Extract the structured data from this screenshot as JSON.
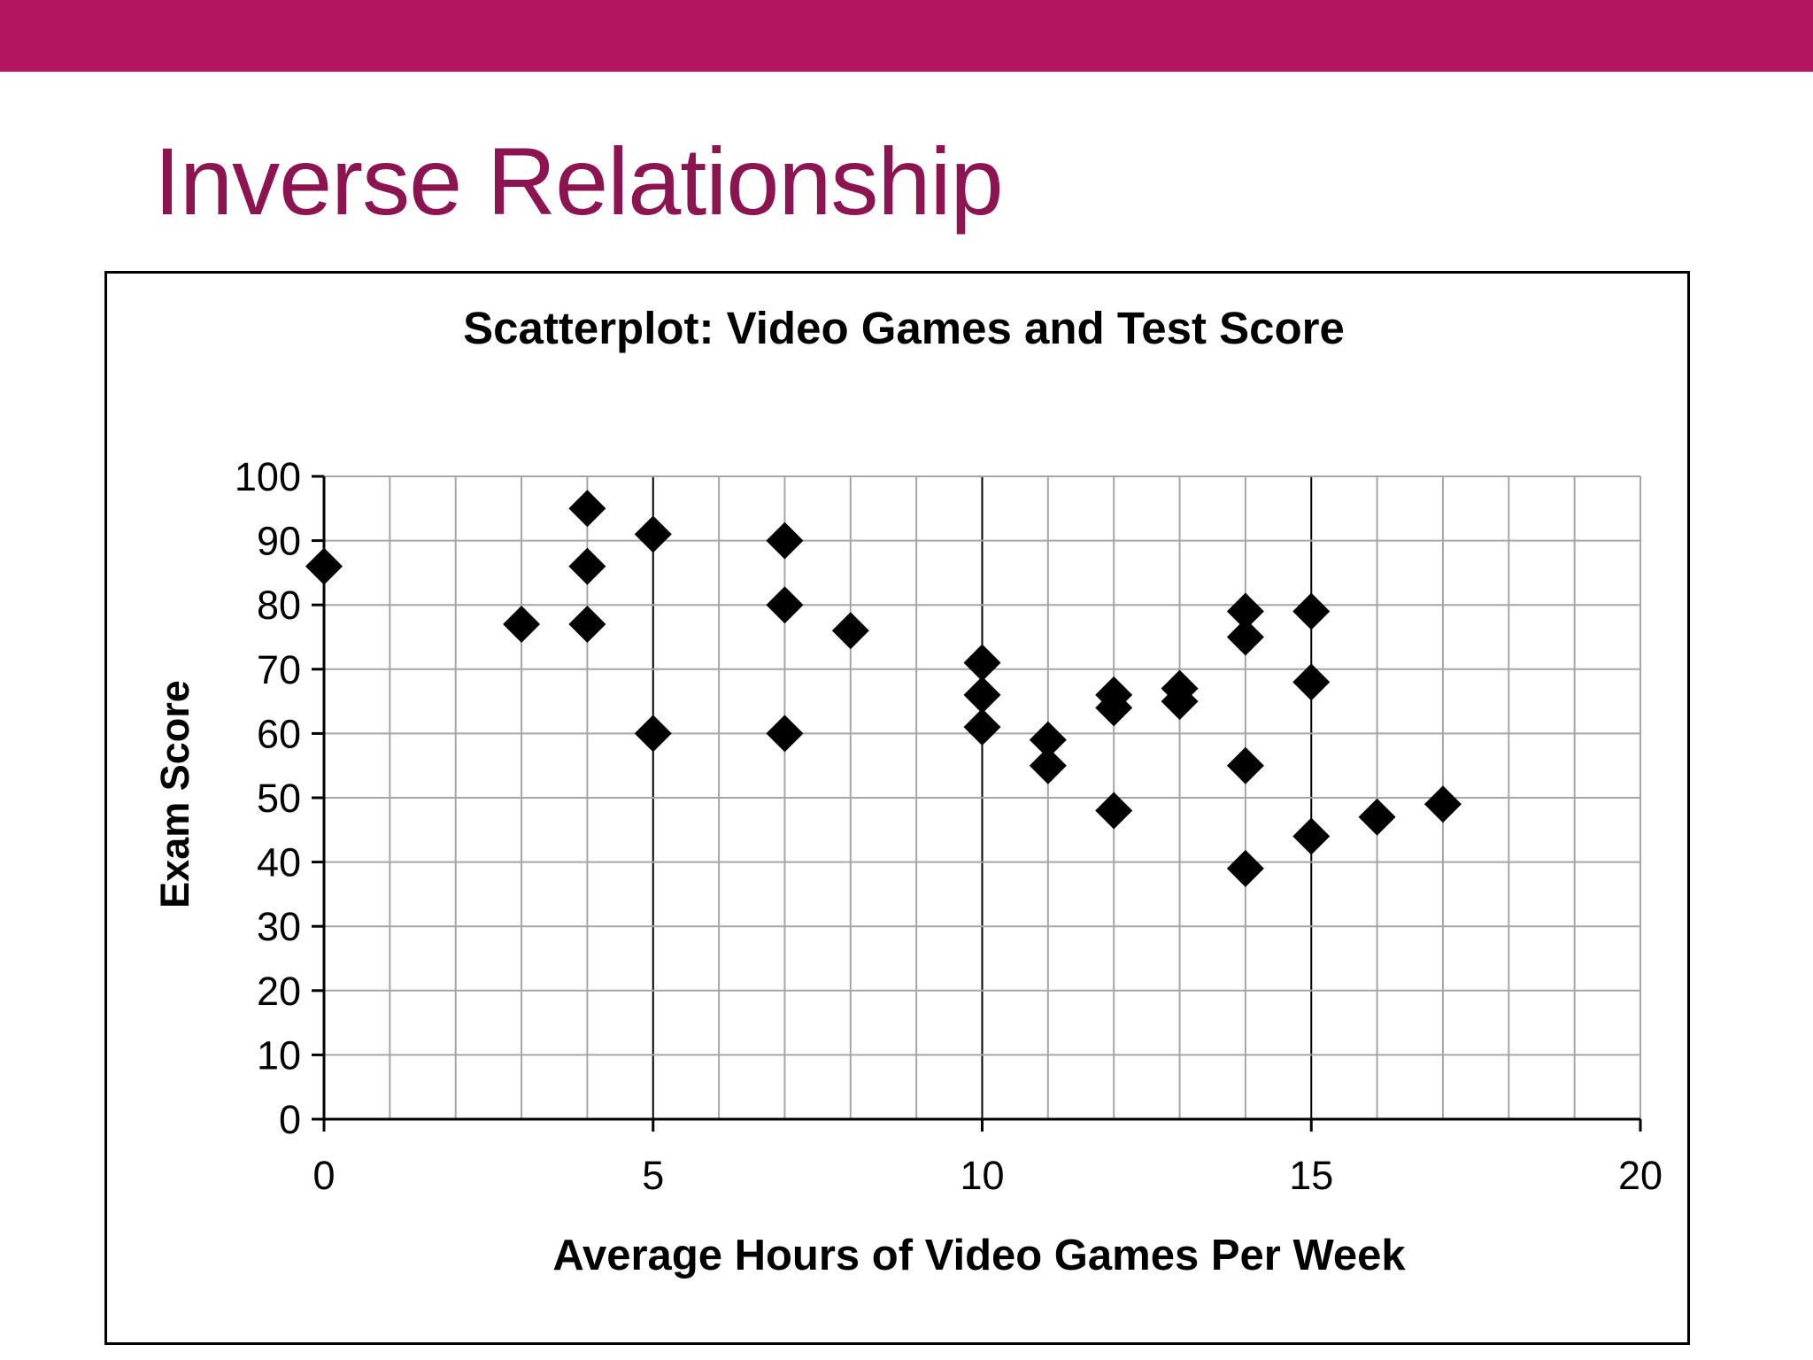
{
  "slide": {
    "title": "Inverse Relationship",
    "band_color": "#b41561",
    "title_color": "#8c1450"
  },
  "chart_data": {
    "type": "scatter",
    "title": "Scatterplot: Video Games and Test Score",
    "xlabel": "Average Hours of Video Games Per Week",
    "ylabel": "Exam Score",
    "xlim": [
      0,
      20
    ],
    "ylim": [
      0,
      100
    ],
    "x_ticks": [
      "0",
      "5",
      "10",
      "15",
      "20"
    ],
    "y_ticks": [
      "0",
      "10",
      "20",
      "30",
      "40",
      "50",
      "60",
      "70",
      "80",
      "90",
      "100"
    ],
    "grid": true,
    "legend": "none",
    "marker": "diamond",
    "marker_color": "#000000",
    "points": [
      {
        "x": 0,
        "y": 86
      },
      {
        "x": 3,
        "y": 77
      },
      {
        "x": 4,
        "y": 95
      },
      {
        "x": 4,
        "y": 86
      },
      {
        "x": 4,
        "y": 77
      },
      {
        "x": 5,
        "y": 91
      },
      {
        "x": 5,
        "y": 60
      },
      {
        "x": 7,
        "y": 90
      },
      {
        "x": 7,
        "y": 80
      },
      {
        "x": 7,
        "y": 60
      },
      {
        "x": 8,
        "y": 76
      },
      {
        "x": 10,
        "y": 71
      },
      {
        "x": 10,
        "y": 66
      },
      {
        "x": 10,
        "y": 61
      },
      {
        "x": 11,
        "y": 59
      },
      {
        "x": 11,
        "y": 55
      },
      {
        "x": 12,
        "y": 66
      },
      {
        "x": 12,
        "y": 64
      },
      {
        "x": 12,
        "y": 48
      },
      {
        "x": 13,
        "y": 67
      },
      {
        "x": 13,
        "y": 65
      },
      {
        "x": 14,
        "y": 79
      },
      {
        "x": 14,
        "y": 75
      },
      {
        "x": 14,
        "y": 55
      },
      {
        "x": 14,
        "y": 39
      },
      {
        "x": 15,
        "y": 79
      },
      {
        "x": 15,
        "y": 68
      },
      {
        "x": 15,
        "y": 44
      },
      {
        "x": 16,
        "y": 47
      },
      {
        "x": 17,
        "y": 49
      }
    ]
  }
}
